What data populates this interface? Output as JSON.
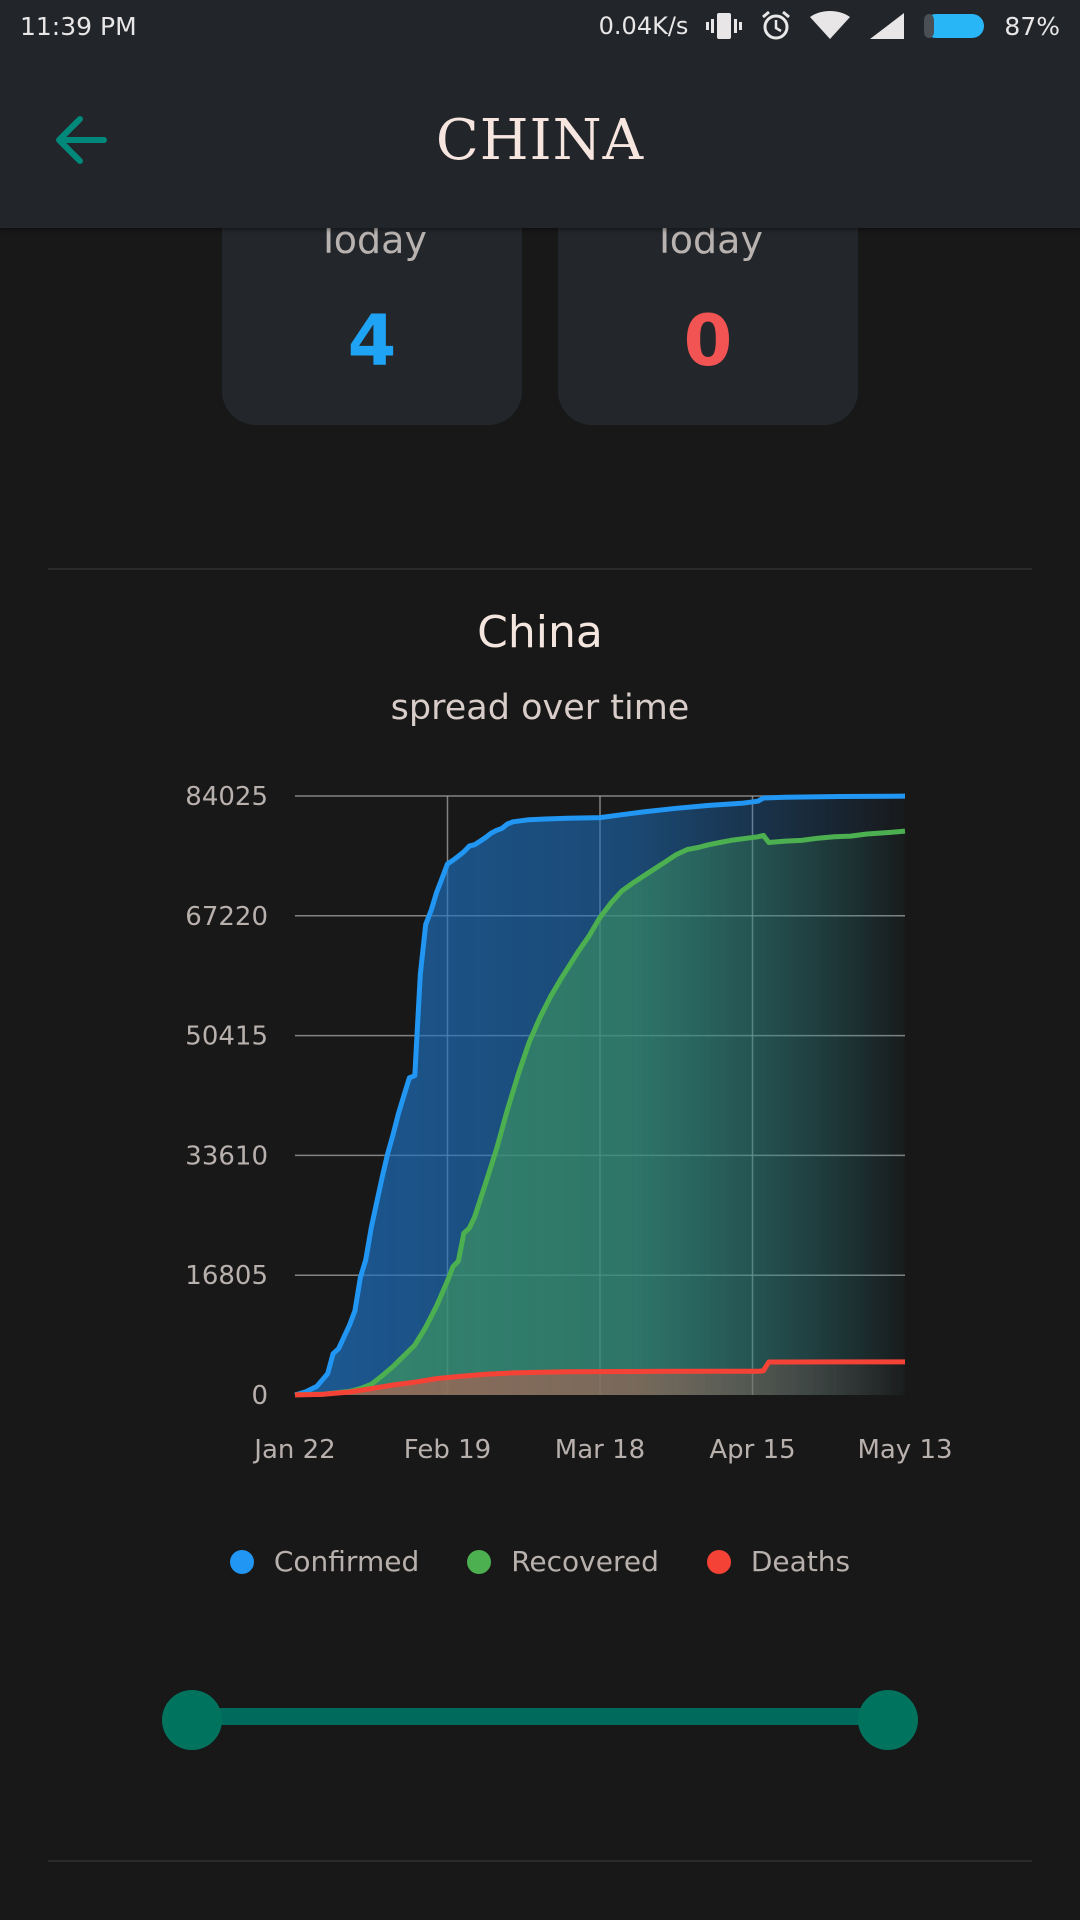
{
  "status": {
    "time": "11:39 PM",
    "net_speed": "0.04K/s",
    "battery": "87%"
  },
  "header": {
    "title": "CHINA",
    "back_icon": "arrow-left-icon",
    "back_color": "#00897b"
  },
  "cards": [
    {
      "label": "Today",
      "value": "4",
      "color": "#1fa3f4"
    },
    {
      "label": "Today",
      "value": "0",
      "color": "#f25353"
    }
  ],
  "chart": {
    "title": "China",
    "subtitle": "spread over time"
  },
  "chart_data": {
    "type": "area",
    "title": "China",
    "subtitle": "spread over time",
    "x_tick_labels": [
      "Jan 22",
      "Feb 19",
      "Mar 18",
      "Apr 15",
      "May 13"
    ],
    "y_tick_labels": [
      "0",
      "16805",
      "33610",
      "50415",
      "67220",
      "84025"
    ],
    "ylim": [
      0,
      84025
    ],
    "xlim_days": [
      0,
      112
    ],
    "grid": true,
    "legend_position": "bottom",
    "series": [
      {
        "name": "Confirmed",
        "color": "#2196f3",
        "points": [
          [
            0,
            0
          ],
          [
            2,
            450
          ],
          [
            4,
            1200
          ],
          [
            6,
            3000
          ],
          [
            7,
            5800
          ],
          [
            8,
            6500
          ],
          [
            10,
            9800
          ],
          [
            11,
            11800
          ],
          [
            12,
            16500
          ],
          [
            13,
            19000
          ],
          [
            14,
            23500
          ],
          [
            15,
            27000
          ],
          [
            16,
            30500
          ],
          [
            17,
            33800
          ],
          [
            18,
            36500
          ],
          [
            19,
            39500
          ],
          [
            20,
            42000
          ],
          [
            21,
            44500
          ],
          [
            22,
            44800
          ],
          [
            23,
            59000
          ],
          [
            24,
            66000
          ],
          [
            25,
            68000
          ],
          [
            26,
            70500
          ],
          [
            27,
            72500
          ],
          [
            28,
            74500
          ],
          [
            29,
            75000
          ],
          [
            30,
            75600
          ],
          [
            31,
            76200
          ],
          [
            32,
            77000
          ],
          [
            33,
            77200
          ],
          [
            34,
            77700
          ],
          [
            35,
            78200
          ],
          [
            36,
            78800
          ],
          [
            37,
            79200
          ],
          [
            38,
            79500
          ],
          [
            39,
            80100
          ],
          [
            40,
            80400
          ],
          [
            43,
            80700
          ],
          [
            46,
            80800
          ],
          [
            50,
            80900
          ],
          [
            56,
            81000
          ],
          [
            60,
            81400
          ],
          [
            64,
            81800
          ],
          [
            70,
            82300
          ],
          [
            76,
            82700
          ],
          [
            82,
            83000
          ],
          [
            85,
            83300
          ],
          [
            86,
            83750
          ],
          [
            90,
            83850
          ],
          [
            100,
            83950
          ],
          [
            112,
            84011
          ]
        ]
      },
      {
        "name": "Recovered",
        "color": "#4caf50",
        "points": [
          [
            0,
            28
          ],
          [
            5,
            100
          ],
          [
            10,
            500
          ],
          [
            12,
            900
          ],
          [
            14,
            1500
          ],
          [
            16,
            2700
          ],
          [
            18,
            4000
          ],
          [
            20,
            5500
          ],
          [
            22,
            7000
          ],
          [
            24,
            9500
          ],
          [
            26,
            12500
          ],
          [
            28,
            16000
          ],
          [
            29,
            18000
          ],
          [
            30,
            18800
          ],
          [
            31,
            22700
          ],
          [
            32,
            23400
          ],
          [
            33,
            25000
          ],
          [
            35,
            29700
          ],
          [
            37,
            34500
          ],
          [
            39,
            40000
          ],
          [
            41,
            45000
          ],
          [
            43,
            49500
          ],
          [
            45,
            53000
          ],
          [
            47,
            56000
          ],
          [
            49,
            58600
          ],
          [
            52,
            62200
          ],
          [
            54,
            64400
          ],
          [
            56,
            67000
          ],
          [
            58,
            69000
          ],
          [
            60,
            70700
          ],
          [
            62,
            71800
          ],
          [
            64,
            72800
          ],
          [
            66,
            73800
          ],
          [
            68,
            74800
          ],
          [
            70,
            75800
          ],
          [
            72,
            76500
          ],
          [
            74,
            76800
          ],
          [
            76,
            77200
          ],
          [
            78,
            77500
          ],
          [
            80,
            77800
          ],
          [
            83,
            78100
          ],
          [
            85,
            78300
          ],
          [
            86,
            78500
          ],
          [
            87,
            77500
          ],
          [
            90,
            77700
          ],
          [
            93,
            77800
          ],
          [
            96,
            78100
          ],
          [
            99,
            78300
          ],
          [
            102,
            78400
          ],
          [
            105,
            78700
          ],
          [
            109,
            78900
          ],
          [
            112,
            79100
          ]
        ]
      },
      {
        "name": "Deaths",
        "color": "#f44336",
        "points": [
          [
            0,
            17
          ],
          [
            5,
            80
          ],
          [
            10,
            420
          ],
          [
            14,
            900
          ],
          [
            18,
            1400
          ],
          [
            22,
            1800
          ],
          [
            26,
            2300
          ],
          [
            30,
            2600
          ],
          [
            35,
            2900
          ],
          [
            40,
            3100
          ],
          [
            45,
            3200
          ],
          [
            50,
            3250
          ],
          [
            55,
            3280
          ],
          [
            60,
            3300
          ],
          [
            65,
            3310
          ],
          [
            70,
            3320
          ],
          [
            75,
            3330
          ],
          [
            80,
            3340
          ],
          [
            85,
            3342
          ],
          [
            86,
            3400
          ],
          [
            87,
            4632
          ],
          [
            90,
            4636
          ],
          [
            100,
            4638
          ],
          [
            112,
            4638
          ]
        ]
      }
    ]
  },
  "legend": [
    {
      "label": "Confirmed",
      "color": "#2196f3"
    },
    {
      "label": "Recovered",
      "color": "#4caf50"
    },
    {
      "label": "Deaths",
      "color": "#f44336"
    }
  ],
  "range_slider": {
    "start_value": 0,
    "end_value": 1,
    "color": "#00735f"
  }
}
